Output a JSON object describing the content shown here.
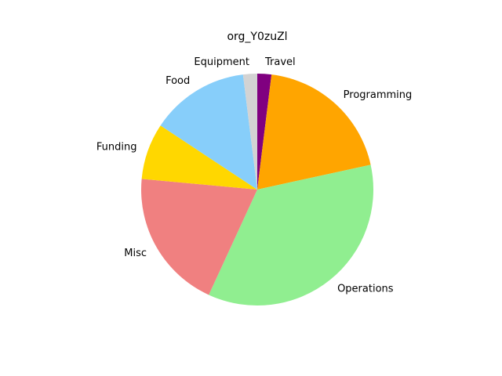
{
  "chart_data": {
    "type": "pie",
    "title": "org_Y0zuZl",
    "labels": [
      "Travel",
      "Programming",
      "Operations",
      "Misc",
      "Funding",
      "Food",
      "Equipment"
    ],
    "values": [
      2,
      20,
      36,
      20,
      8,
      14,
      2
    ],
    "colors": [
      "#800080",
      "#ffa500",
      "#90ee90",
      "#f08080",
      "#ffd700",
      "#87cefa",
      "#d3d3d3"
    ],
    "start_angle_deg": 90,
    "direction": "clockwise"
  }
}
